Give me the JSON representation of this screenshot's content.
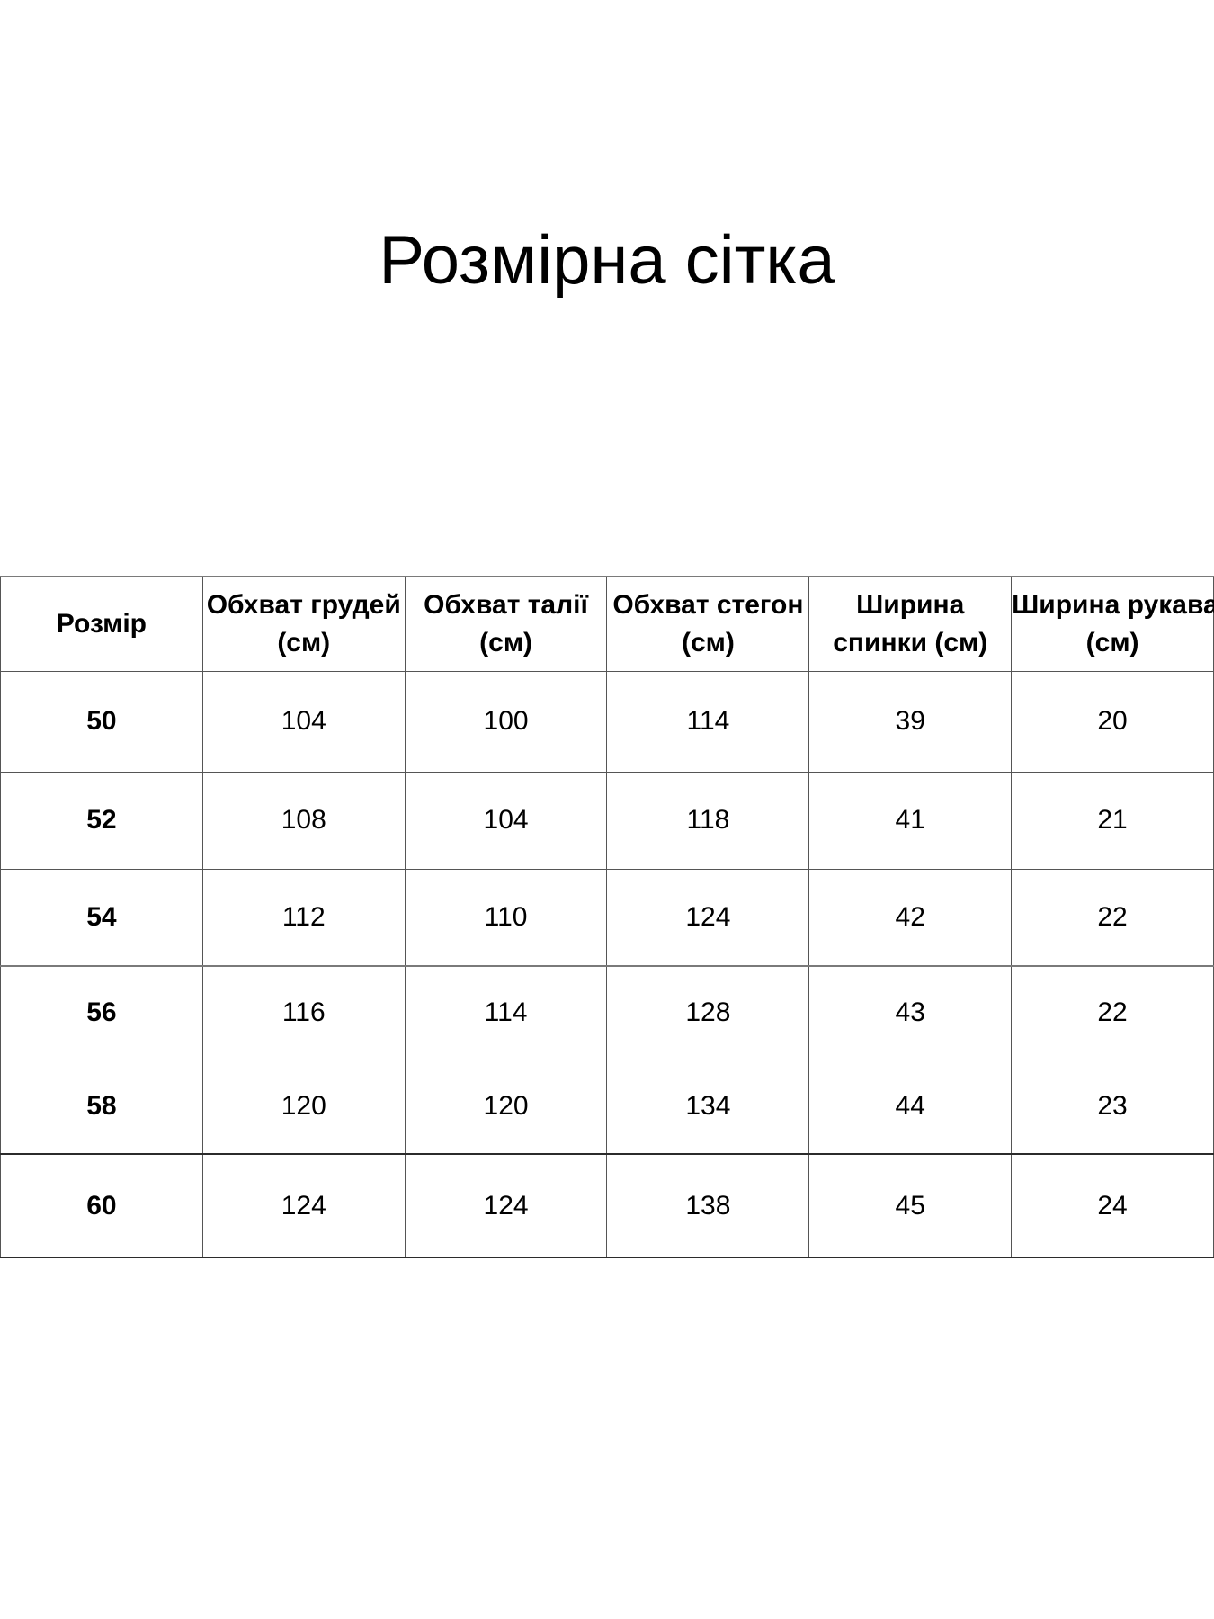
{
  "title": "Розмірна сітка",
  "table": {
    "columns": [
      {
        "line1": "Розмір",
        "line2": ""
      },
      {
        "line1": "Обхват грудей",
        "line2": "(см)"
      },
      {
        "line1": "Обхват талії",
        "line2": "(см)"
      },
      {
        "line1": "Обхват стегон",
        "line2": "(см)"
      },
      {
        "line1": "Ширина",
        "line2": "спинки (см)"
      },
      {
        "line1": "Ширина рукава",
        "line2": "(см)"
      }
    ],
    "rows": [
      [
        "50",
        "104",
        "100",
        "114",
        "39",
        "20"
      ],
      [
        "52",
        "108",
        "104",
        "118",
        "41",
        "21"
      ],
      [
        "54",
        "112",
        "110",
        "124",
        "42",
        "22"
      ],
      [
        "56",
        "116",
        "114",
        "128",
        "43",
        "22"
      ],
      [
        "58",
        "120",
        "120",
        "134",
        "44",
        "23"
      ],
      [
        "60",
        "124",
        "124",
        "138",
        "45",
        "24"
      ]
    ]
  },
  "colors": {
    "background": "#ffffff",
    "text": "#000000",
    "grid_border": "#555555",
    "heavy_rule_gray": "#7a7a7a",
    "heavy_rule_dark": "#2b2b2b"
  }
}
